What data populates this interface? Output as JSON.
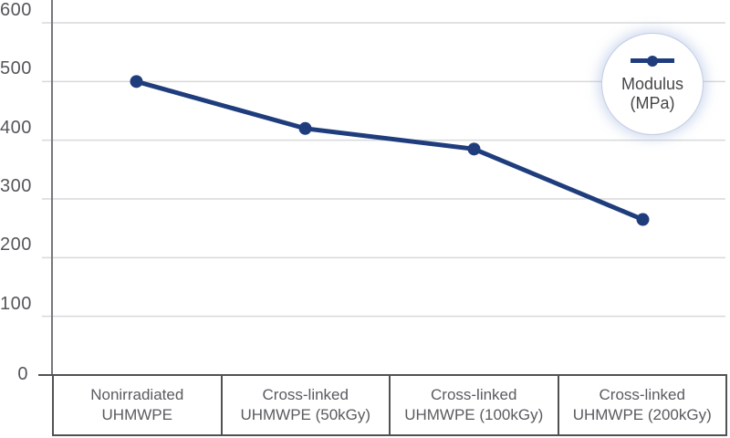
{
  "chart_data": {
    "type": "line",
    "title": "",
    "categories": [
      "Nonirradiated UHMWPE",
      "Cross-linked UHMWPE (50kGy)",
      "Cross-linked UHMWPE (100kGy)",
      "Cross-linked UHMWPE (200kGy)"
    ],
    "series": [
      {
        "name": "Modulus (MPa)",
        "values": [
          500,
          420,
          385,
          265
        ]
      }
    ],
    "xlabel": "",
    "ylabel": "",
    "ylim": [
      0,
      600
    ],
    "yticks": [
      0,
      100,
      200,
      300,
      400,
      500,
      600
    ],
    "grid": "horizontal",
    "legend_position": "top-right-circle"
  },
  "legend": {
    "line1": "Modulus",
    "line2": "(MPa)"
  },
  "colors": {
    "line": "#1f3d7d",
    "grid": "#d8d9db",
    "axis": "#77787b",
    "border": "#515254",
    "tick_text": "#55565a",
    "category_text": "#5a5b5f",
    "legend_text": "#454648",
    "background": "#ffffff"
  }
}
